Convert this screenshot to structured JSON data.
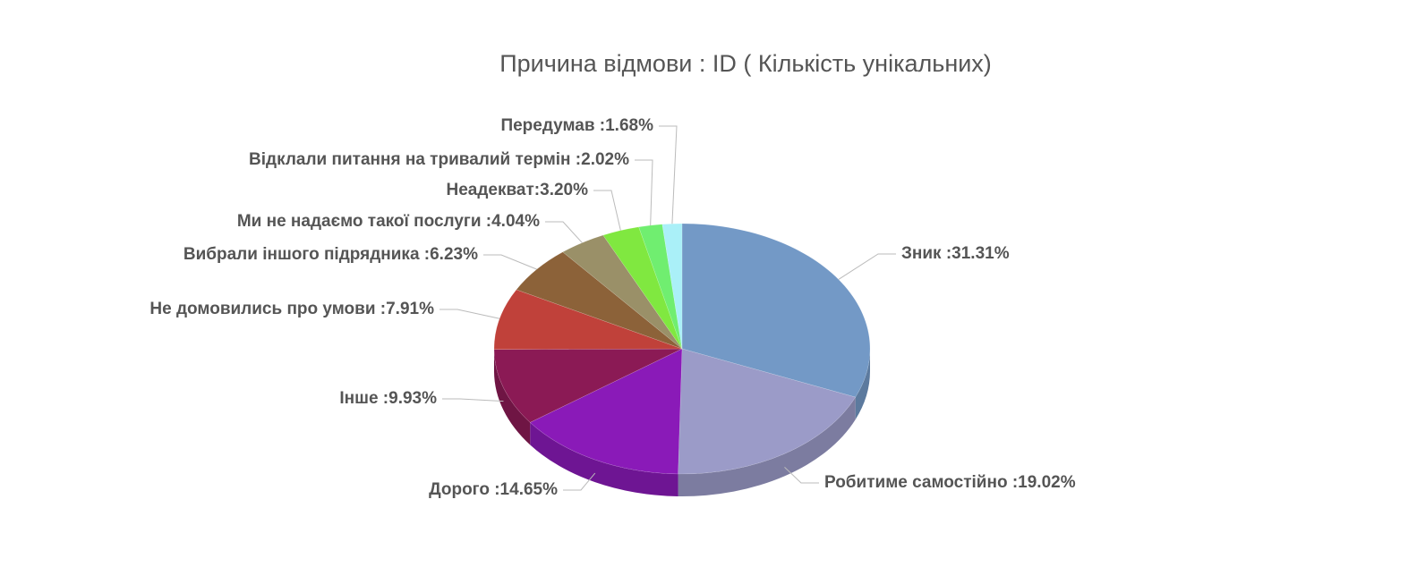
{
  "chart_data": {
    "type": "pie",
    "title": "Причина відмови : ID ( Кількість унікальних)",
    "values": [
      31.31,
      19.02,
      14.65,
      9.93,
      7.91,
      6.23,
      4.04,
      3.2,
      2.02,
      1.68
    ],
    "value_labels": [
      "Зник :31.31%",
      "Робитиме самостійно :19.02%",
      "Дорого :14.65%",
      "Інше :9.93%",
      "Не домовились про умови :7.91%",
      "Вибрали іншого підрядника :6.23%",
      "Ми не надаємо такої послуги :4.04%",
      "Неадекват:3.20%",
      "Відклали питання на тривалий термін :2.02%",
      "Передумав :1.68%"
    ],
    "colors": [
      "#7399c6",
      "#9b9bc8",
      "#8a1ab8",
      "#8b1a55",
      "#c0413a",
      "#8c6239",
      "#9a9068",
      "#80e840",
      "#70ee70",
      "#aaf0f8"
    ]
  }
}
